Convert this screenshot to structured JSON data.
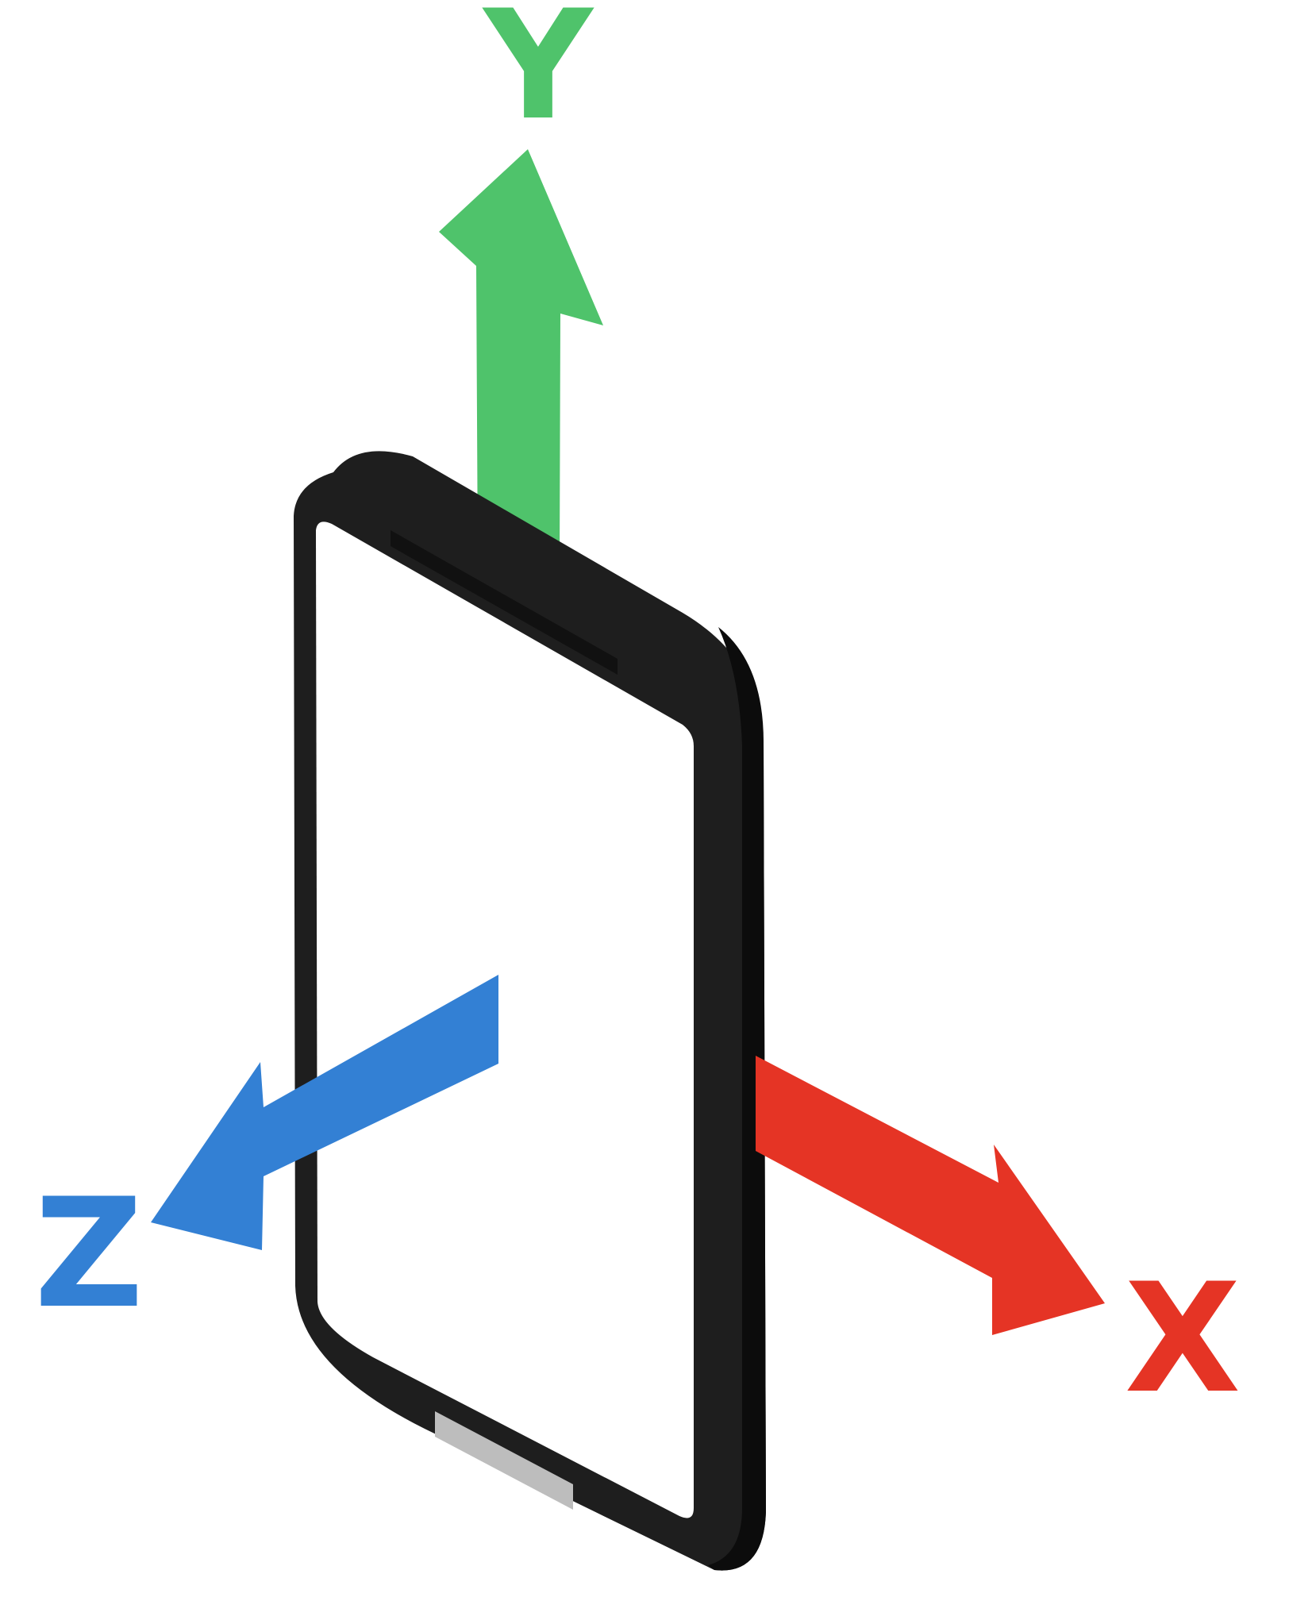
{
  "axes": {
    "x": {
      "label": "X",
      "color": "#e53425"
    },
    "y": {
      "label": "Y",
      "color": "#4fc36b"
    },
    "z": {
      "label": "Z",
      "color": "#3380d4"
    }
  },
  "phone": {
    "body_color": "#1e1e1e",
    "screen_color": "#ffffff",
    "speaker_color": "#111111",
    "home_button_color": "#bdbdbd"
  }
}
